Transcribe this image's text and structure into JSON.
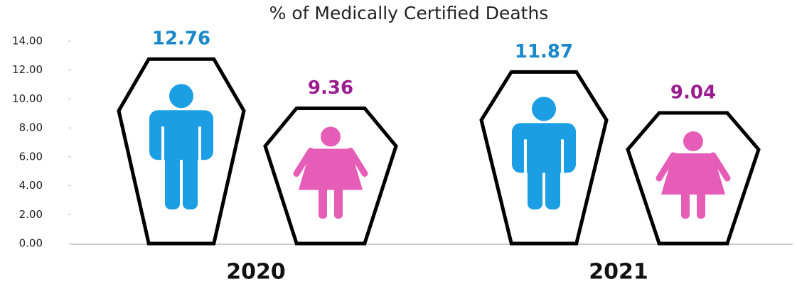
{
  "chart_data": {
    "type": "bar",
    "title": "% of Medically Certified Deaths",
    "categories": [
      "2020",
      "2021"
    ],
    "series": [
      {
        "color": "#1b9ee3",
        "label_color": "#1a88c9",
        "values": [
          12.76,
          11.87
        ]
      },
      {
        "color": "#e65db8",
        "label_color": "#9a1c8f",
        "values": [
          9.36,
          9.04
        ]
      }
    ],
    "ylim": [
      0,
      14
    ],
    "yticks": [
      {
        "value": 0,
        "label": "0.00"
      },
      {
        "value": 2,
        "label": "2.00"
      },
      {
        "value": 4,
        "label": "4.00"
      },
      {
        "value": 6,
        "label": "6.00"
      },
      {
        "value": 8,
        "label": "8.00"
      },
      {
        "value": 10,
        "label": "10.00"
      },
      {
        "value": 12,
        "label": "12.00"
      },
      {
        "value": 14,
        "label": "14.00"
      }
    ]
  }
}
